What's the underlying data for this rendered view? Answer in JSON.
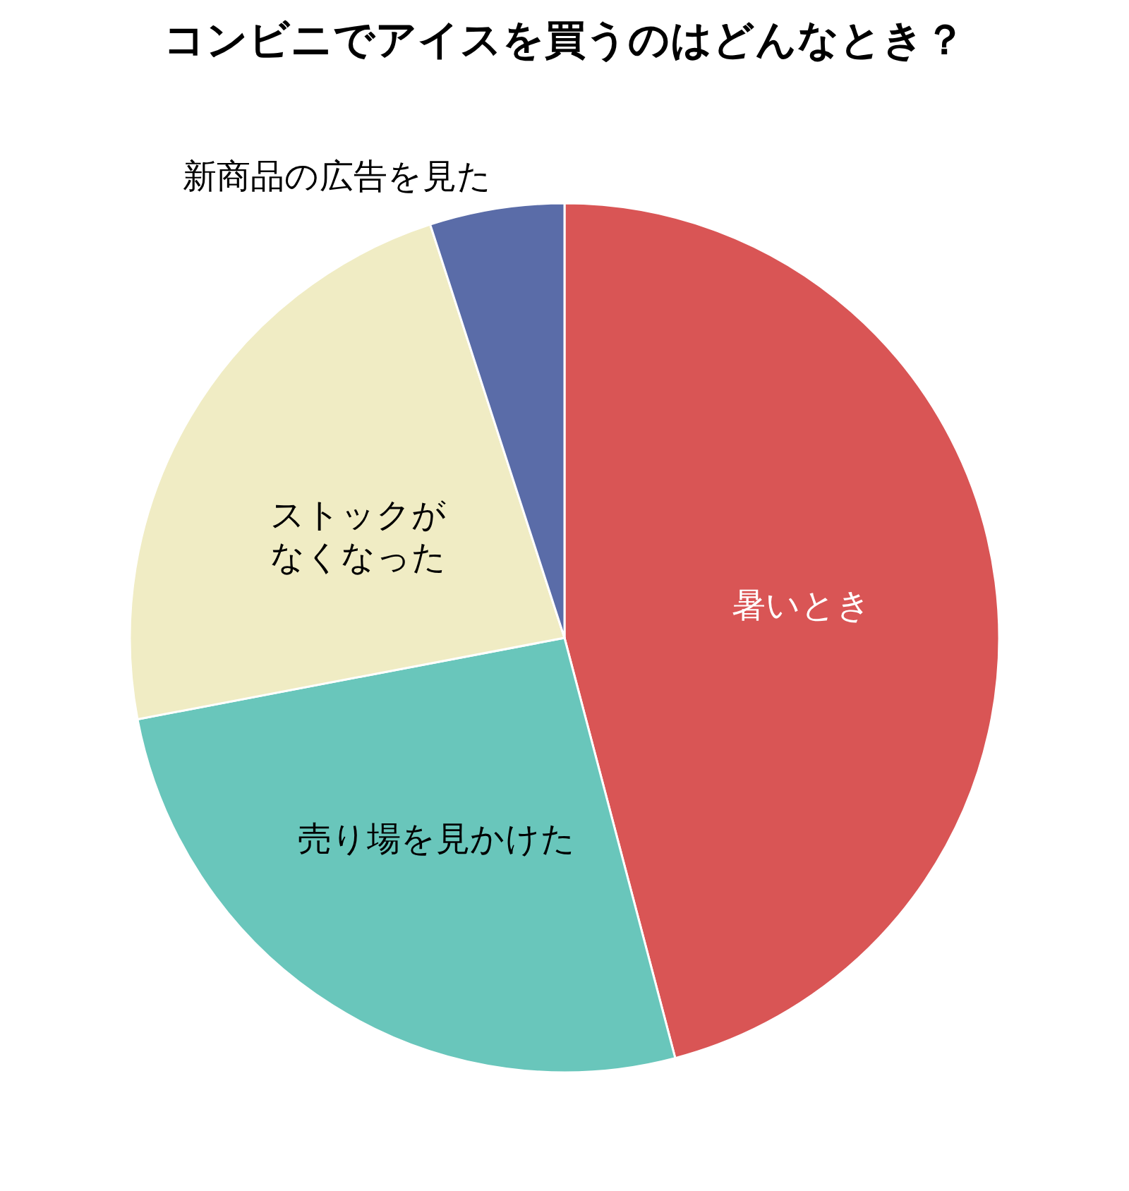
{
  "chart_data": {
    "type": "pie",
    "title": "コンビニでアイスを買うのはどんなとき？",
    "categories": [
      "暑いとき",
      "売り場を見かけた",
      "ストックがなくなった",
      "新商品の広告を見た"
    ],
    "values": [
      45.9,
      26.1,
      23.0,
      5.0
    ],
    "colors": [
      "#d95555",
      "#69c6bb",
      "#f0ecc4",
      "#5a6ca8"
    ]
  }
}
